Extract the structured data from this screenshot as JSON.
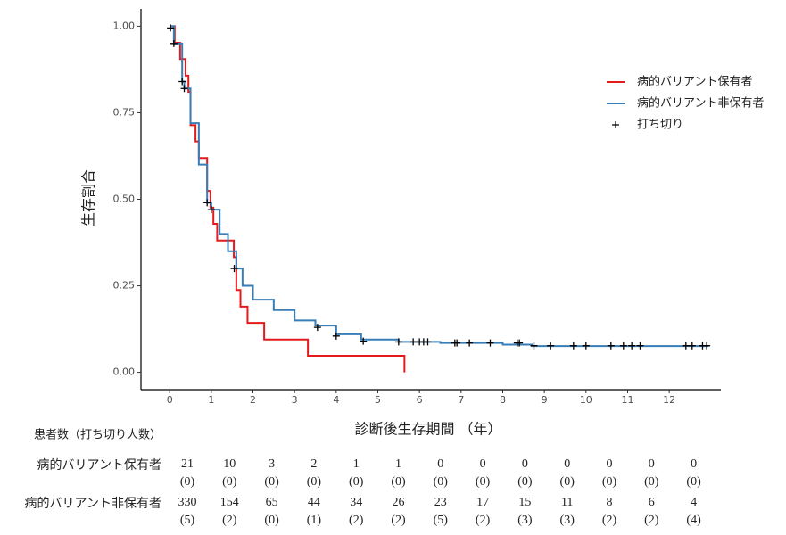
{
  "chart_data": {
    "type": "km",
    "x_label": "診断後生存期間 （年）",
    "y_label": "生存割合",
    "xlim": [
      -0.69,
      13.24
    ],
    "ylim": [
      -0.05,
      1.05
    ],
    "xticks": [
      0,
      1,
      2,
      3,
      4,
      5,
      6,
      7,
      8,
      9,
      10,
      11,
      12
    ],
    "yticks": [
      {
        "value": 0,
        "label": "0.00"
      },
      {
        "value": 0.25,
        "label": "0.25"
      },
      {
        "value": 0.5,
        "label": "0.50"
      },
      {
        "value": 0.75,
        "label": "0.75"
      },
      {
        "value": 1,
        "label": "1.00"
      }
    ],
    "series": [
      {
        "name": "病的バリアント保有者",
        "color": "#e41a1c",
        "x": [
          0,
          0.12,
          0.25,
          0.38,
          0.45,
          0.5,
          0.62,
          0.7,
          0.9,
          0.98,
          1.05,
          1.14,
          1.54,
          1.6,
          1.7,
          1.87,
          2.27,
          3.32,
          5.64
        ],
        "values": [
          1,
          0.952,
          0.905,
          0.857,
          0.81,
          0.714,
          0.667,
          0.619,
          0.524,
          0.476,
          0.429,
          0.381,
          0.333,
          0.238,
          0.19,
          0.143,
          0.095,
          0.048,
          0
        ]
      },
      {
        "name": "病的バリアント非保有者",
        "color": "#377eb8",
        "x": [
          0,
          0.1,
          0.3,
          0.35,
          0.5,
          0.7,
          0.9,
          1.0,
          1.2,
          1.4,
          1.6,
          1.75,
          2.0,
          2.5,
          3.0,
          3.5,
          4.0,
          4.6,
          5.5,
          6.5,
          8.0,
          8.7,
          12.95
        ],
        "values": [
          1,
          0.95,
          0.84,
          0.82,
          0.72,
          0.6,
          0.49,
          0.47,
          0.4,
          0.35,
          0.3,
          0.25,
          0.21,
          0.18,
          0.15,
          0.135,
          0.11,
          0.095,
          0.088,
          0.085,
          0.08,
          0.076,
          0.076
        ]
      },
      {
        "name": "打ち切り",
        "color": "#000000",
        "x": [
          0.02,
          0.1,
          0.3,
          0.35,
          0.9,
          1.0,
          1.55,
          3.55,
          4.0,
          4.65,
          5.5,
          5.85,
          6.0,
          6.1,
          6.2,
          6.85,
          6.9,
          7.2,
          7.7,
          8.35,
          8.4,
          8.75,
          9.15,
          9.7,
          10.0,
          10.6,
          10.9,
          11.1,
          11.3,
          12.4,
          12.55,
          12.8,
          12.9
        ],
        "values": [
          0.995,
          0.95,
          0.84,
          0.82,
          0.49,
          0.47,
          0.3,
          0.13,
          0.105,
          0.09,
          0.088,
          0.088,
          0.088,
          0.088,
          0.088,
          0.085,
          0.085,
          0.085,
          0.085,
          0.085,
          0.085,
          0.077,
          0.077,
          0.077,
          0.077,
          0.077,
          0.077,
          0.077,
          0.077,
          0.077,
          0.077,
          0.077,
          0.077
        ]
      }
    ],
    "risk_table": {
      "title": "患者数（打ち切り人数）",
      "rows": [
        {
          "name": "病的バリアント保有者",
          "at_risk": [
            21,
            10,
            3,
            2,
            1,
            1,
            0,
            0,
            0,
            0,
            0,
            0,
            0
          ],
          "censored": [
            "(0)",
            "(0)",
            "(0)",
            "(0)",
            "(0)",
            "(0)",
            "(0)",
            "(0)",
            "(0)",
            "(0)",
            "(0)",
            "(0)",
            "(0)"
          ]
        },
        {
          "name": "病的バリアント非保有者",
          "at_risk": [
            330,
            154,
            65,
            44,
            34,
            26,
            23,
            17,
            15,
            11,
            8,
            6,
            4
          ],
          "censored": [
            "(5)",
            "(2)",
            "(0)",
            "(1)",
            "(2)",
            "(2)",
            "(5)",
            "(2)",
            "(3)",
            "(3)",
            "(2)",
            "(2)",
            "(4)"
          ]
        }
      ]
    }
  }
}
